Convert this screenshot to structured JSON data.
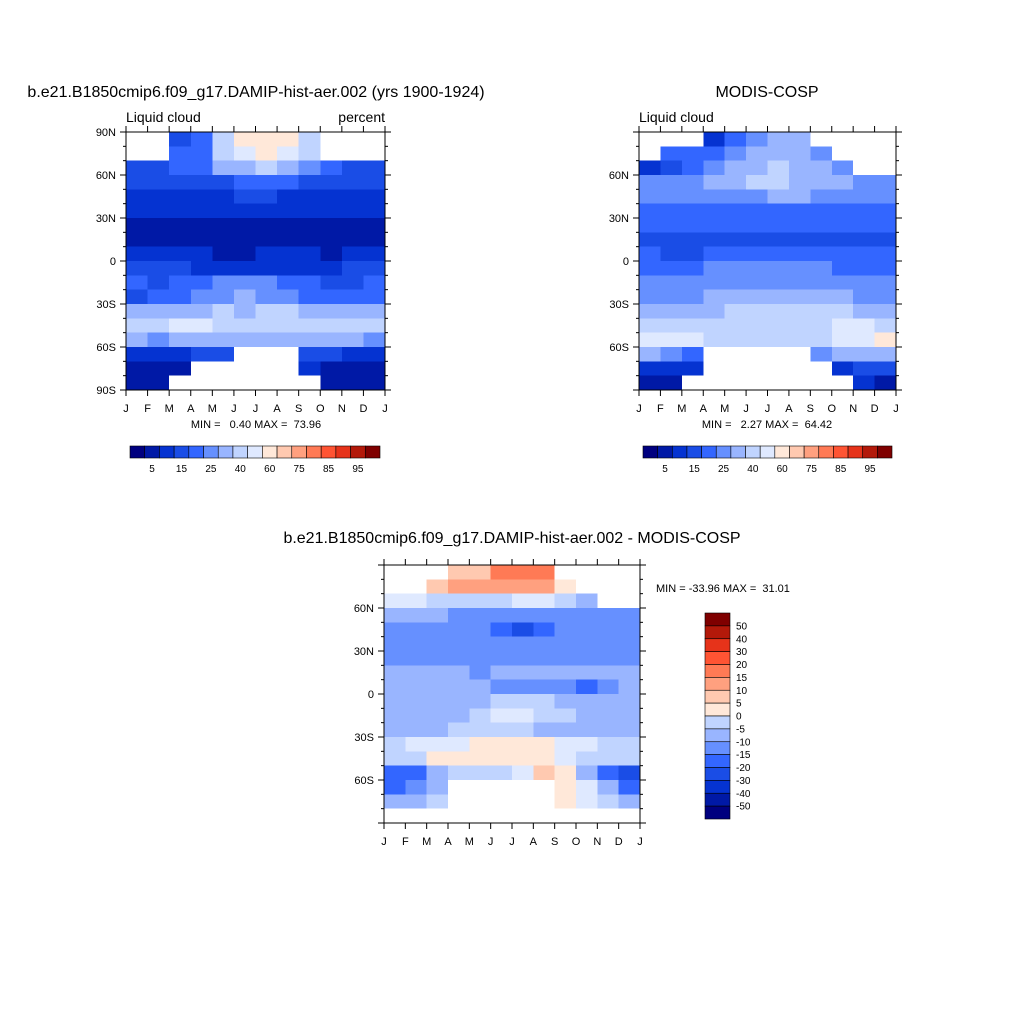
{
  "palette": {
    "abs_colors": [
      "#00007f",
      "#0019a6",
      "#0533d1",
      "#1a4de6",
      "#3366ff",
      "#6690ff",
      "#99b5ff",
      "#c0d4ff",
      "#dfe9ff",
      "#ffe8d9",
      "#ffc9b0",
      "#ffa07f",
      "#ff7a55",
      "#ff5433",
      "#e6331a",
      "#b3190a",
      "#7f0000"
    ],
    "diff_colors": [
      "#00007f",
      "#0019a6",
      "#0533d1",
      "#1a4de6",
      "#3366ff",
      "#6690ff",
      "#99b5ff",
      "#c0d4ff",
      "#dfe9ff",
      "#ffe8d9",
      "#ffc9b0",
      "#ffa07f",
      "#ff7a55",
      "#ff5433",
      "#e6331a",
      "#b3190a",
      "#7f0000"
    ],
    "missing": "#ffffff"
  },
  "chart_data": [
    {
      "type": "heatmap",
      "title": "b.e21.B1850cmip6.f09_g17.DAMIP-hist-aer.002 (yrs 1900-1924)",
      "left_label": "Liquid cloud",
      "right_label": "percent",
      "xticks": [
        "J",
        "F",
        "M",
        "A",
        "M",
        "J",
        "J",
        "A",
        "S",
        "O",
        "N",
        "D",
        "J"
      ],
      "yticks": [
        "90N",
        "60N",
        "30N",
        "0",
        "30S",
        "60S",
        "90S"
      ],
      "stats": "MIN =   0.40 MAX =  73.96",
      "colorbar_labels": [
        "5",
        "15",
        "25",
        "40",
        "60",
        "75",
        "85",
        "95"
      ],
      "levels": [
        5,
        10,
        15,
        20,
        25,
        30,
        35,
        40,
        50,
        60,
        65,
        70,
        75,
        80,
        85,
        90,
        95
      ],
      "lat": [
        85,
        75,
        65,
        55,
        45,
        35,
        25,
        15,
        5,
        -5,
        -15,
        -25,
        -35,
        -45,
        -55,
        -65,
        -75,
        -85
      ],
      "months": [
        "J",
        "F",
        "M",
        "A",
        "M",
        "J",
        "J",
        "A",
        "S",
        "O",
        "N",
        "D"
      ],
      "values": [
        [
          null,
          null,
          17,
          22,
          35,
          52,
          55,
          52,
          37,
          null,
          null,
          null
        ],
        [
          null,
          null,
          20,
          24,
          38,
          48,
          50,
          47,
          35,
          null,
          null,
          null
        ],
        [
          17,
          19,
          21,
          23,
          30,
          33,
          36,
          33,
          27,
          21,
          19,
          18
        ],
        [
          15,
          16,
          17,
          18,
          19,
          20,
          21,
          20,
          18,
          17,
          16,
          15
        ],
        [
          13,
          13,
          13,
          14,
          14,
          15,
          15,
          14,
          14,
          13,
          13,
          13
        ],
        [
          10,
          10,
          10,
          10,
          10,
          10,
          10,
          10,
          10,
          10,
          10,
          10
        ],
        [
          8,
          7,
          7,
          7,
          8,
          8,
          8,
          8,
          8,
          7,
          7,
          8
        ],
        [
          9,
          9,
          9,
          8,
          8,
          9,
          9,
          9,
          9,
          8,
          9,
          9
        ],
        [
          11,
          11,
          10,
          10,
          9,
          9,
          10,
          10,
          10,
          9,
          10,
          11
        ],
        [
          16,
          15,
          15,
          14,
          14,
          14,
          14,
          14,
          14,
          14,
          15,
          16
        ],
        [
          20,
          19,
          20,
          24,
          28,
          28,
          26,
          24,
          20,
          19,
          19,
          20
        ],
        [
          19,
          20,
          22,
          26,
          29,
          30,
          28,
          26,
          24,
          22,
          21,
          20
        ],
        [
          31,
          32,
          33,
          34,
          35,
          34,
          35,
          35,
          34,
          33,
          32,
          31
        ],
        [
          38,
          39,
          45,
          41,
          37,
          35,
          36,
          37,
          36,
          37,
          38,
          38
        ],
        [
          30,
          29,
          31,
          33,
          32,
          31,
          32,
          33,
          32,
          31,
          30,
          29
        ],
        [
          12,
          13,
          12,
          15,
          17,
          null,
          null,
          null,
          17,
          15,
          13,
          12
        ],
        [
          8,
          8,
          8,
          null,
          null,
          null,
          null,
          null,
          10,
          9,
          8,
          8
        ],
        [
          6,
          6,
          null,
          null,
          null,
          null,
          null,
          null,
          null,
          7,
          6,
          6
        ]
      ]
    },
    {
      "type": "heatmap",
      "title": "MODIS-COSP",
      "left_label": "Liquid cloud",
      "right_label": "",
      "xticks": [
        "J",
        "F",
        "M",
        "A",
        "M",
        "J",
        "J",
        "A",
        "S",
        "O",
        "N",
        "D",
        "J"
      ],
      "yticks": [
        "",
        "60N",
        "30N",
        "0",
        "30S",
        "60S",
        ""
      ],
      "stats": "MIN =   2.27 MAX =  64.42",
      "colorbar_labels": [
        "5",
        "15",
        "25",
        "40",
        "60",
        "75",
        "85",
        "95"
      ],
      "levels": [
        5,
        10,
        15,
        20,
        25,
        30,
        35,
        40,
        50,
        60,
        65,
        70,
        75,
        80,
        85,
        90,
        95
      ],
      "lat": [
        85,
        75,
        65,
        55,
        45,
        35,
        25,
        15,
        5,
        -5,
        -15,
        -25,
        -35,
        -45,
        -55,
        -65,
        -75,
        -85
      ],
      "months": [
        "J",
        "F",
        "M",
        "A",
        "M",
        "J",
        "J",
        "A",
        "S",
        "O",
        "N",
        "D"
      ],
      "values": [
        [
          null,
          null,
          null,
          10,
          22,
          28,
          30,
          30,
          null,
          null,
          null,
          null
        ],
        [
          null,
          20,
          24,
          22,
          27,
          30,
          32,
          31,
          28,
          null,
          null,
          null
        ],
        [
          14,
          18,
          22,
          26,
          31,
          34,
          35,
          33,
          31,
          27,
          null,
          null
        ],
        [
          25,
          26,
          27,
          30,
          33,
          35,
          36,
          34,
          32,
          30,
          28,
          27
        ],
        [
          26,
          26,
          27,
          28,
          28,
          29,
          30,
          30,
          29,
          28,
          28,
          27
        ],
        [
          23,
          23,
          22,
          22,
          23,
          23,
          23,
          24,
          24,
          23,
          23,
          24
        ],
        [
          22,
          21,
          21,
          21,
          22,
          22,
          21,
          21,
          21,
          21,
          22,
          22
        ],
        [
          19,
          18,
          18,
          18,
          19,
          19,
          18,
          17,
          17,
          18,
          19,
          19
        ],
        [
          20,
          19,
          19,
          20,
          21,
          21,
          21,
          20,
          20,
          20,
          20,
          20
        ],
        [
          22,
          23,
          23,
          25,
          26,
          27,
          27,
          26,
          25,
          24,
          23,
          22
        ],
        [
          26,
          26,
          27,
          28,
          29,
          29,
          28,
          28,
          27,
          27,
          26,
          26
        ],
        [
          27,
          28,
          29,
          31,
          33,
          33,
          33,
          32,
          31,
          30,
          29,
          28
        ],
        [
          33,
          32,
          33,
          34,
          35,
          35,
          35,
          35,
          35,
          35,
          34,
          33
        ],
        [
          36,
          36,
          38,
          39,
          37,
          36,
          36,
          37,
          38,
          40,
          41,
          39
        ],
        [
          48,
          44,
          41,
          38,
          37,
          36,
          36,
          37,
          38,
          42,
          46,
          50
        ],
        [
          30,
          26,
          23,
          null,
          null,
          null,
          null,
          null,
          27,
          31,
          33,
          34
        ],
        [
          14,
          13,
          12,
          null,
          null,
          null,
          null,
          null,
          null,
          14,
          15,
          16
        ],
        [
          9,
          8,
          null,
          null,
          null,
          null,
          null,
          null,
          null,
          null,
          10,
          9
        ]
      ]
    },
    {
      "type": "heatmap",
      "title": "b.e21.B1850cmip6.f09_g17.DAMIP-hist-aer.002 - MODIS-COSP",
      "left_label": "",
      "right_label": "",
      "xticks": [
        "J",
        "F",
        "M",
        "A",
        "M",
        "J",
        "J",
        "A",
        "S",
        "O",
        "N",
        "D",
        "J"
      ],
      "yticks": [
        "",
        "60N",
        "30N",
        "0",
        "30S",
        "60S",
        ""
      ],
      "stats": "MIN = -33.96 MAX =  31.01",
      "colorbar_labels": [
        "50",
        "40",
        "30",
        "20",
        "15",
        "10",
        "5",
        "0",
        "-5",
        "-10",
        "-15",
        "-20",
        "-30",
        "-40",
        "-50"
      ],
      "levels": [
        -50,
        -40,
        -30,
        -20,
        -15,
        -10,
        -5,
        0,
        5,
        10,
        15,
        20,
        30,
        40,
        50
      ],
      "lat": [
        85,
        75,
        65,
        55,
        45,
        35,
        25,
        15,
        5,
        -5,
        -15,
        -25,
        -35,
        -45,
        -55,
        -65,
        -75,
        -85
      ],
      "months": [
        "J",
        "F",
        "M",
        "A",
        "M",
        "J",
        "J",
        "A",
        "S",
        "O",
        "N",
        "D"
      ],
      "values": [
        [
          null,
          null,
          null,
          12,
          13,
          24,
          25,
          22,
          null,
          null,
          null,
          null
        ],
        [
          null,
          null,
          14,
          16,
          18,
          18,
          18,
          16,
          7,
          null,
          null,
          null
        ],
        [
          3,
          1,
          -1,
          -3,
          -1,
          -1,
          1,
          0,
          -4,
          -6,
          null,
          null
        ],
        [
          -10,
          -10,
          -10,
          -12,
          -14,
          -15,
          -15,
          -14,
          -14,
          -13,
          -12,
          -12
        ],
        [
          -13,
          -13,
          -14,
          -14,
          -14,
          -18,
          -25,
          -16,
          -15,
          -15,
          -15,
          -14
        ],
        [
          -13,
          -13,
          -12,
          -12,
          -13,
          -13,
          -13,
          -14,
          -14,
          -13,
          -13,
          -14
        ],
        [
          -14,
          -14,
          -14,
          -14,
          -14,
          -14,
          -13,
          -13,
          -13,
          -14,
          -15,
          -14
        ],
        [
          -10,
          -9,
          -9,
          -10,
          -11,
          -10,
          -9,
          -8,
          -8,
          -10,
          -10,
          -10
        ],
        [
          -9,
          -8,
          -9,
          -10,
          -10,
          -11,
          -11,
          -12,
          -13,
          -16,
          -14,
          -10
        ],
        [
          -6,
          -8,
          -8,
          -9,
          -7,
          -4,
          -3,
          -3,
          -7,
          -9,
          -8,
          -6
        ],
        [
          -6,
          -7,
          -7,
          -6,
          -1,
          3,
          2,
          -2,
          -4,
          -6,
          -7,
          -6
        ],
        [
          -8,
          -8,
          -7,
          -5,
          -4,
          -2,
          -3,
          -6,
          -7,
          -8,
          -8,
          -8
        ],
        [
          -2,
          0,
          1,
          1,
          5,
          6,
          7,
          5,
          4,
          1,
          -1,
          -2
        ],
        [
          -3,
          -2,
          7,
          8,
          8,
          6,
          9,
          7,
          4,
          -2,
          -4,
          -4
        ],
        [
          -20,
          -16,
          -8,
          -3,
          -1,
          -2,
          3,
          12,
          8,
          -6,
          -18,
          -22
        ],
        [
          -16,
          -13,
          -8,
          null,
          null,
          null,
          null,
          null,
          6,
          2,
          -8,
          -18
        ],
        [
          -6,
          -6,
          -4,
          null,
          null,
          null,
          null,
          null,
          5,
          3,
          -5,
          -8
        ],
        [
          null,
          null,
          null,
          null,
          null,
          null,
          null,
          null,
          null,
          null,
          null,
          null
        ]
      ]
    }
  ]
}
